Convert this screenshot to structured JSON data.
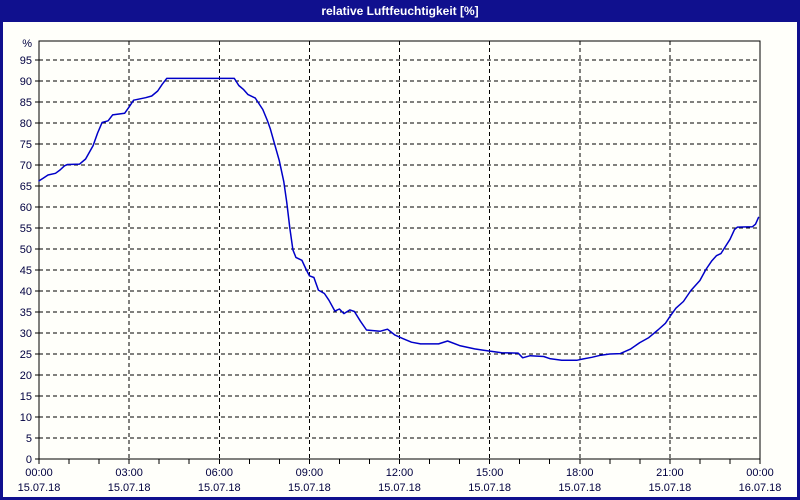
{
  "window": {
    "title": "relative Luftfeuchtigkeit [%]"
  },
  "colors": {
    "chrome_navy": "#10108e",
    "plot_background": "#fffffa",
    "grid_line": "#000000",
    "axis_frame": "#000000",
    "tick_label": "#000040",
    "title_text": "#ffffff",
    "series_line": "#0000c8"
  },
  "chart_data": {
    "type": "line",
    "title": "relative Luftfeuchtigkeit [%]",
    "ylabel": "%",
    "xlabel": "",
    "ylim": [
      0,
      100
    ],
    "y_ticks": [
      0,
      5,
      10,
      15,
      20,
      25,
      30,
      35,
      40,
      45,
      50,
      55,
      60,
      65,
      70,
      75,
      80,
      85,
      90,
      95
    ],
    "x_hours_range": [
      0,
      24
    ],
    "x_minor_tick_every_hours": 1,
    "grid": "dashed-black-at-5pct-and-3h",
    "legend_position": "none",
    "x_major_ticks": [
      {
        "hour": 0,
        "time": "00:00",
        "date": "15.07.18"
      },
      {
        "hour": 3,
        "time": "03:00",
        "date": "15.07.18"
      },
      {
        "hour": 6,
        "time": "06:00",
        "date": "15.07.18"
      },
      {
        "hour": 9,
        "time": "09:00",
        "date": "15.07.18"
      },
      {
        "hour": 12,
        "time": "12:00",
        "date": "15.07.18"
      },
      {
        "hour": 15,
        "time": "15:00",
        "date": "15.07.18"
      },
      {
        "hour": 18,
        "time": "18:00",
        "date": "15.07.18"
      },
      {
        "hour": 21,
        "time": "21:00",
        "date": "15.07.18"
      },
      {
        "hour": 24,
        "time": "00:00",
        "date": "16.07.18"
      }
    ],
    "series": [
      {
        "name": "relative Luftfeuchtigkeit",
        "unit": "%",
        "color": "#0000c8",
        "points_hour_value": [
          [
            0.0,
            66.2
          ],
          [
            0.15,
            66.9
          ],
          [
            0.3,
            67.6
          ],
          [
            0.55,
            68.0
          ],
          [
            0.7,
            68.8
          ],
          [
            0.85,
            69.8
          ],
          [
            0.95,
            70.1
          ],
          [
            1.35,
            70.2
          ],
          [
            1.55,
            71.4
          ],
          [
            1.8,
            74.6
          ],
          [
            1.95,
            77.6
          ],
          [
            2.1,
            80.1
          ],
          [
            2.3,
            80.5
          ],
          [
            2.45,
            81.9
          ],
          [
            2.85,
            82.3
          ],
          [
            3.0,
            83.8
          ],
          [
            3.15,
            85.4
          ],
          [
            3.55,
            86.0
          ],
          [
            3.75,
            86.4
          ],
          [
            3.95,
            87.6
          ],
          [
            4.1,
            89.2
          ],
          [
            4.25,
            90.6
          ],
          [
            6.5,
            90.6
          ],
          [
            6.65,
            88.9
          ],
          [
            6.8,
            88.0
          ],
          [
            6.95,
            86.8
          ],
          [
            7.2,
            85.9
          ],
          [
            7.45,
            83.2
          ],
          [
            7.6,
            80.6
          ],
          [
            7.7,
            78.6
          ],
          [
            7.85,
            74.8
          ],
          [
            8.0,
            71.0
          ],
          [
            8.15,
            66.0
          ],
          [
            8.25,
            61.0
          ],
          [
            8.35,
            55.0
          ],
          [
            8.45,
            49.8
          ],
          [
            8.55,
            48.0
          ],
          [
            8.75,
            47.3
          ],
          [
            8.9,
            45.0
          ],
          [
            9.0,
            43.6
          ],
          [
            9.15,
            43.2
          ],
          [
            9.3,
            40.2
          ],
          [
            9.5,
            39.4
          ],
          [
            9.65,
            37.8
          ],
          [
            9.85,
            35.2
          ],
          [
            10.0,
            35.7
          ],
          [
            10.15,
            34.6
          ],
          [
            10.35,
            35.5
          ],
          [
            10.5,
            35.1
          ],
          [
            10.7,
            32.8
          ],
          [
            10.9,
            30.7
          ],
          [
            11.35,
            30.4
          ],
          [
            11.6,
            30.9
          ],
          [
            11.85,
            29.5
          ],
          [
            12.1,
            28.7
          ],
          [
            12.4,
            27.8
          ],
          [
            12.7,
            27.4
          ],
          [
            13.3,
            27.4
          ],
          [
            13.6,
            28.1
          ],
          [
            14.0,
            27.0
          ],
          [
            14.5,
            26.2
          ],
          [
            14.8,
            25.9
          ],
          [
            15.1,
            25.6
          ],
          [
            15.4,
            25.3
          ],
          [
            15.95,
            25.2
          ],
          [
            16.1,
            24.1
          ],
          [
            16.35,
            24.6
          ],
          [
            16.8,
            24.4
          ],
          [
            17.0,
            23.9
          ],
          [
            17.4,
            23.5
          ],
          [
            17.9,
            23.5
          ],
          [
            18.1,
            23.8
          ],
          [
            18.4,
            24.2
          ],
          [
            18.7,
            24.7
          ],
          [
            19.0,
            25.0
          ],
          [
            19.35,
            25.1
          ],
          [
            19.7,
            26.2
          ],
          [
            20.0,
            27.7
          ],
          [
            20.3,
            28.9
          ],
          [
            20.6,
            30.7
          ],
          [
            20.85,
            32.3
          ],
          [
            21.0,
            33.9
          ],
          [
            21.2,
            35.9
          ],
          [
            21.45,
            37.5
          ],
          [
            21.7,
            40.1
          ],
          [
            22.0,
            42.5
          ],
          [
            22.2,
            45.1
          ],
          [
            22.4,
            47.2
          ],
          [
            22.55,
            48.4
          ],
          [
            22.7,
            48.9
          ],
          [
            23.0,
            52.3
          ],
          [
            23.15,
            54.6
          ],
          [
            23.25,
            55.2
          ],
          [
            23.75,
            55.3
          ],
          [
            23.85,
            55.9
          ],
          [
            23.95,
            57.5
          ]
        ]
      }
    ]
  }
}
